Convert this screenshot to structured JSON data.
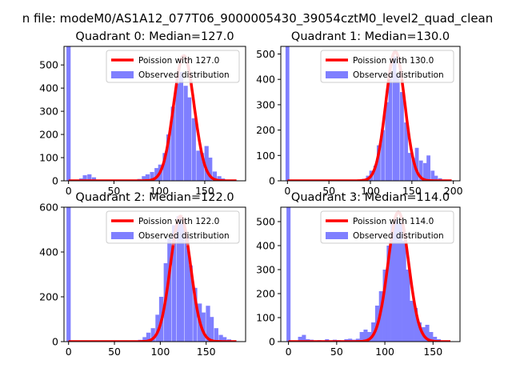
{
  "figure": {
    "suptitle": "n file: modeM0/AS1A12_077T06_9000005430_39054cztM0_level2_quad_clean",
    "legend_labels": [
      "Poission with",
      "Observed distribution"
    ],
    "colors": {
      "hist": "#7f7fff",
      "poisson": "#ff0000",
      "poisson_overlap": "#e58f9c"
    }
  },
  "chart_data": [
    {
      "type": "bar",
      "title": "Quadrant 0: Median=127.0",
      "median": 127.0,
      "poisson_label": "Poission with 127.0",
      "hist_label": "Observed distribution",
      "xlim": [
        -5,
        195
      ],
      "ylim": [
        0,
        580
      ],
      "xticks": [
        0,
        50,
        100,
        150
      ],
      "yticks": [
        0,
        100,
        200,
        300,
        400,
        500
      ],
      "bin_width": 4.6,
      "bins": [
        [
          0,
          580
        ],
        [
          9,
          3
        ],
        [
          14,
          10
        ],
        [
          18,
          24
        ],
        [
          23,
          28
        ],
        [
          28,
          15
        ],
        [
          32,
          5
        ],
        [
          37,
          3
        ],
        [
          41,
          4
        ],
        [
          46,
          3
        ],
        [
          51,
          2
        ],
        [
          55,
          2
        ],
        [
          60,
          2
        ],
        [
          64,
          2
        ],
        [
          69,
          3
        ],
        [
          74,
          4
        ],
        [
          78,
          8
        ],
        [
          83,
          20
        ],
        [
          87,
          28
        ],
        [
          92,
          38
        ],
        [
          97,
          55
        ],
        [
          101,
          70
        ],
        [
          106,
          120
        ],
        [
          110,
          200
        ],
        [
          115,
          320
        ],
        [
          120,
          420
        ],
        [
          124,
          470
        ],
        [
          129,
          410
        ],
        [
          133,
          360
        ],
        [
          138,
          270
        ],
        [
          143,
          130
        ],
        [
          147,
          120
        ],
        [
          152,
          150
        ],
        [
          156,
          100
        ],
        [
          161,
          40
        ],
        [
          166,
          20
        ],
        [
          170,
          10
        ],
        [
          175,
          5
        ],
        [
          179,
          3
        ],
        [
          184,
          2
        ]
      ],
      "poisson": {
        "mean": 127.0,
        "peak": 540,
        "sigma": 11.3
      }
    },
    {
      "type": "bar",
      "title": "Quadrant 1: Median=130.0",
      "median": 130.0,
      "poisson_label": "Poission with 130.0",
      "hist_label": "Observed distribution",
      "xlim": [
        -8,
        208
      ],
      "ylim": [
        0,
        530
      ],
      "xticks": [
        0,
        50,
        100,
        150,
        200
      ],
      "yticks": [
        0,
        100,
        200,
        300,
        400,
        500
      ],
      "bin_width": 4.6,
      "bins": [
        [
          0,
          530
        ],
        [
          9,
          2
        ],
        [
          18,
          2
        ],
        [
          28,
          1
        ],
        [
          37,
          1
        ],
        [
          46,
          1
        ],
        [
          55,
          1
        ],
        [
          64,
          1
        ],
        [
          74,
          1
        ],
        [
          83,
          2
        ],
        [
          87,
          4
        ],
        [
          92,
          8
        ],
        [
          97,
          20
        ],
        [
          101,
          40
        ],
        [
          106,
          60
        ],
        [
          110,
          140
        ],
        [
          115,
          200
        ],
        [
          120,
          310
        ],
        [
          124,
          420
        ],
        [
          129,
          490
        ],
        [
          133,
          420
        ],
        [
          138,
          350
        ],
        [
          143,
          230
        ],
        [
          147,
          110
        ],
        [
          152,
          90
        ],
        [
          156,
          130
        ],
        [
          161,
          80
        ],
        [
          166,
          70
        ],
        [
          170,
          100
        ],
        [
          175,
          40
        ],
        [
          179,
          20
        ],
        [
          184,
          10
        ],
        [
          189,
          5
        ],
        [
          193,
          3
        ]
      ],
      "poisson": {
        "mean": 130.0,
        "peak": 510,
        "sigma": 11.4
      }
    },
    {
      "type": "bar",
      "title": "Quadrant 2: Median=122.0",
      "median": 122.0,
      "poisson_label": "Poission with 122.0",
      "hist_label": "Observed distribution",
      "xlim": [
        -5,
        193
      ],
      "ylim": [
        0,
        600
      ],
      "xticks": [
        0,
        50,
        100,
        150
      ],
      "yticks": [
        0,
        200,
        400,
        600
      ],
      "bin_width": 4.6,
      "bins": [
        [
          0,
          600
        ],
        [
          78,
          8
        ],
        [
          83,
          20
        ],
        [
          87,
          40
        ],
        [
          92,
          60
        ],
        [
          97,
          120
        ],
        [
          101,
          200
        ],
        [
          106,
          350
        ],
        [
          110,
          460
        ],
        [
          115,
          520
        ],
        [
          120,
          560
        ],
        [
          124,
          540
        ],
        [
          129,
          470
        ],
        [
          133,
          340
        ],
        [
          138,
          240
        ],
        [
          143,
          170
        ],
        [
          147,
          130
        ],
        [
          152,
          160
        ],
        [
          156,
          110
        ],
        [
          161,
          60
        ],
        [
          166,
          30
        ],
        [
          170,
          20
        ],
        [
          175,
          10
        ],
        [
          179,
          4
        ],
        [
          184,
          2
        ]
      ],
      "poisson": {
        "mean": 122.0,
        "peak": 560,
        "sigma": 11.0
      }
    },
    {
      "type": "bar",
      "title": "Quadrant 3: Median=114.0",
      "median": 114.0,
      "poisson_label": "Poission with 114.0",
      "hist_label": "Observed distribution",
      "xlim": [
        -8,
        178
      ],
      "ylim": [
        0,
        560
      ],
      "xticks": [
        0,
        50,
        100,
        150
      ],
      "yticks": [
        0,
        100,
        200,
        300,
        400,
        500
      ],
      "bin_width": 4.2,
      "bins": [
        [
          0,
          560
        ],
        [
          12,
          20
        ],
        [
          16,
          28
        ],
        [
          20,
          10
        ],
        [
          24,
          8
        ],
        [
          32,
          6
        ],
        [
          40,
          10
        ],
        [
          48,
          8
        ],
        [
          52,
          6
        ],
        [
          60,
          10
        ],
        [
          64,
          12
        ],
        [
          68,
          8
        ],
        [
          72,
          12
        ],
        [
          76,
          40
        ],
        [
          80,
          50
        ],
        [
          84,
          40
        ],
        [
          88,
          80
        ],
        [
          92,
          150
        ],
        [
          96,
          210
        ],
        [
          100,
          300
        ],
        [
          104,
          400
        ],
        [
          108,
          490
        ],
        [
          112,
          510
        ],
        [
          116,
          500
        ],
        [
          120,
          420
        ],
        [
          124,
          300
        ],
        [
          128,
          170
        ],
        [
          132,
          140
        ],
        [
          136,
          80
        ],
        [
          140,
          60
        ],
        [
          144,
          70
        ],
        [
          148,
          40
        ],
        [
          152,
          20
        ],
        [
          156,
          10
        ],
        [
          160,
          4
        ]
      ],
      "poisson": {
        "mean": 114.0,
        "peak": 540,
        "sigma": 10.7
      }
    }
  ]
}
